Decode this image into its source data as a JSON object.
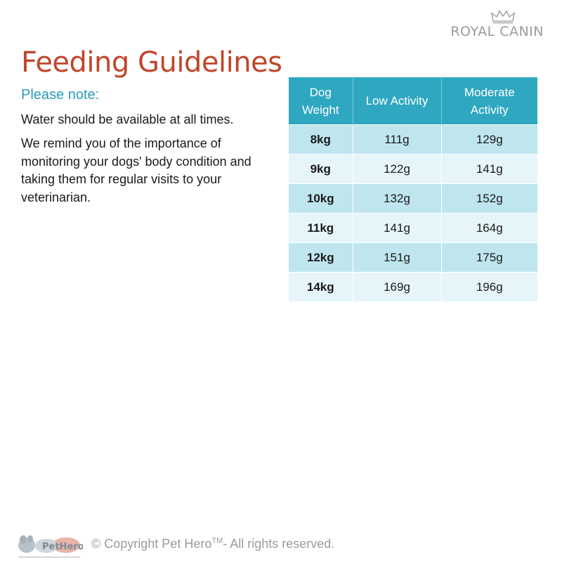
{
  "brand": {
    "name": "ROYAL CANIN",
    "icon": "crown-icon"
  },
  "title": "Feeding Guidelines",
  "note": {
    "heading": "Please note:",
    "paragraphs": [
      "Water should be available at all times.",
      "We remind you of the importance of monitoring your dogs' body condition and taking them for regular visits to your veterinarian."
    ]
  },
  "table": {
    "headers": [
      "Dog Weight",
      "Low Activity",
      "Moderate Activity"
    ],
    "rows": [
      [
        "8kg",
        "111g",
        "129g"
      ],
      [
        "9kg",
        "122g",
        "141g"
      ],
      [
        "10kg",
        "132g",
        "152g"
      ],
      [
        "11kg",
        "141g",
        "164g"
      ],
      [
        "12kg",
        "151g",
        "175g"
      ],
      [
        "14kg",
        "169g",
        "196g"
      ]
    ]
  },
  "footer": {
    "logo_text": "PetHero",
    "copyright_prefix": "© Copyright Pet Hero",
    "trademark": "TM",
    "copyright_suffix": "- All rights reserved."
  },
  "colors": {
    "title": "#c0462b",
    "accent": "#2a9bb6",
    "header_bg": "#2fa7c1",
    "row_dark": "#bfe6ef",
    "row_light": "#e6f5f9"
  }
}
